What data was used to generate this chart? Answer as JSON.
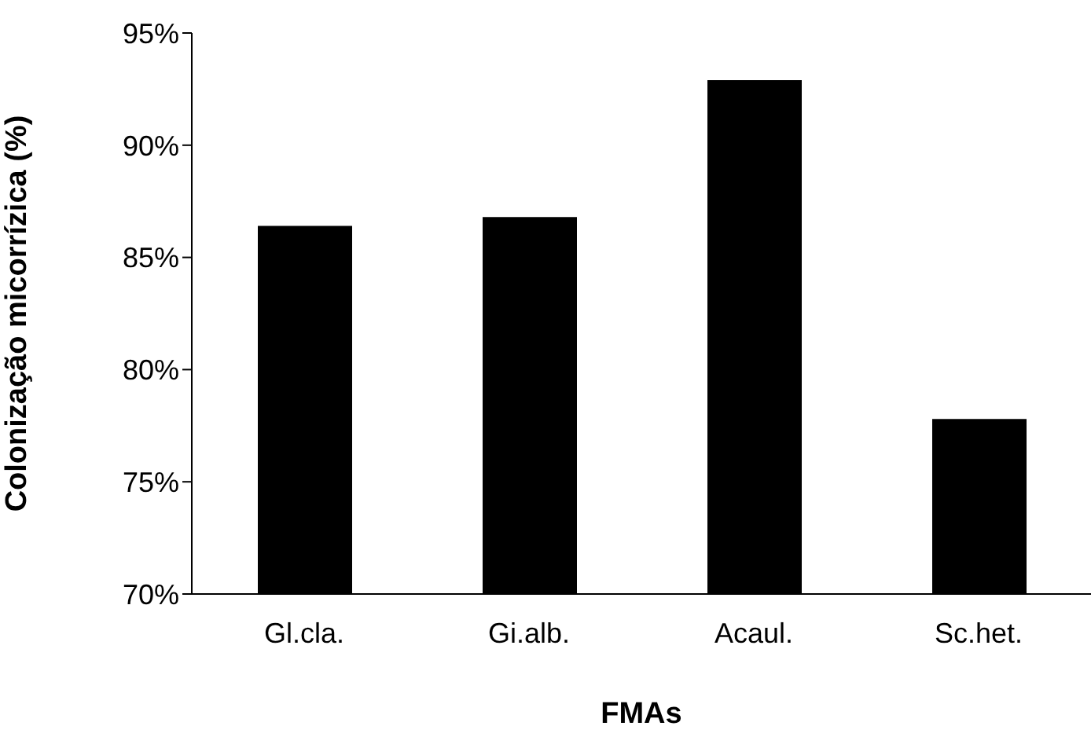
{
  "chart_data": {
    "type": "bar",
    "xlabel": "FMAs",
    "ylabel": "Colonização micorrízica (%)",
    "categories": [
      "Gl.cla.",
      "Gi.alb.",
      "Acaul.",
      "Sc.het."
    ],
    "values": [
      86.4,
      86.8,
      92.9,
      77.8
    ],
    "color": "#000000",
    "ylim": [
      70,
      95
    ],
    "yticks": [
      {
        "value": 70,
        "label": "70%"
      },
      {
        "value": 75,
        "label": "75%"
      },
      {
        "value": 80,
        "label": "80%"
      },
      {
        "value": 85,
        "label": "85%"
      },
      {
        "value": 90,
        "label": "90%"
      },
      {
        "value": 95,
        "label": "95%"
      }
    ],
    "grid": false,
    "legend": false
  }
}
